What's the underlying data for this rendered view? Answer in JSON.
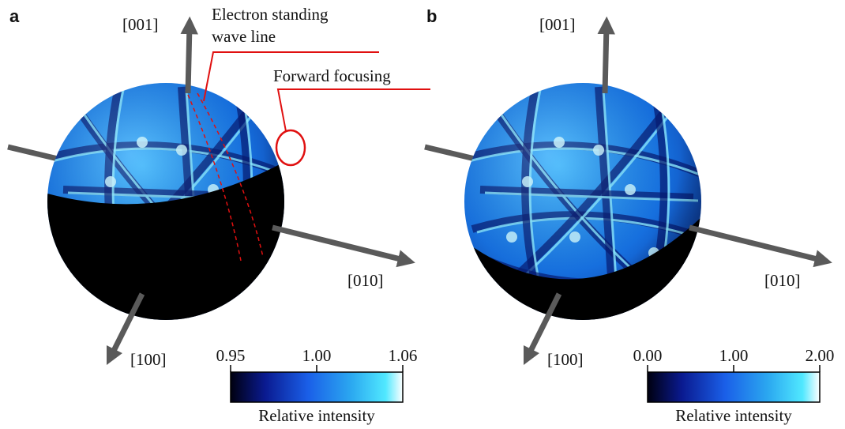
{
  "panels": [
    {
      "label": "a",
      "axis_labels": {
        "z": "[001]",
        "y": "[010]",
        "x": "[100]"
      },
      "annotations": [
        {
          "lines": [
            "Electron standing",
            "wave line"
          ]
        },
        {
          "lines": [
            "Forward focusing"
          ]
        }
      ],
      "colorbar": {
        "ticks": [
          "0.95",
          "1.00",
          "1.06"
        ],
        "label": "Relative intensity"
      }
    },
    {
      "label": "b",
      "axis_labels": {
        "z": "[001]",
        "y": "[010]",
        "x": "[100]"
      },
      "annotations": [],
      "colorbar": {
        "ticks": [
          "0.00",
          "1.00",
          "2.00"
        ],
        "label": "Relative intensity"
      }
    }
  ]
}
